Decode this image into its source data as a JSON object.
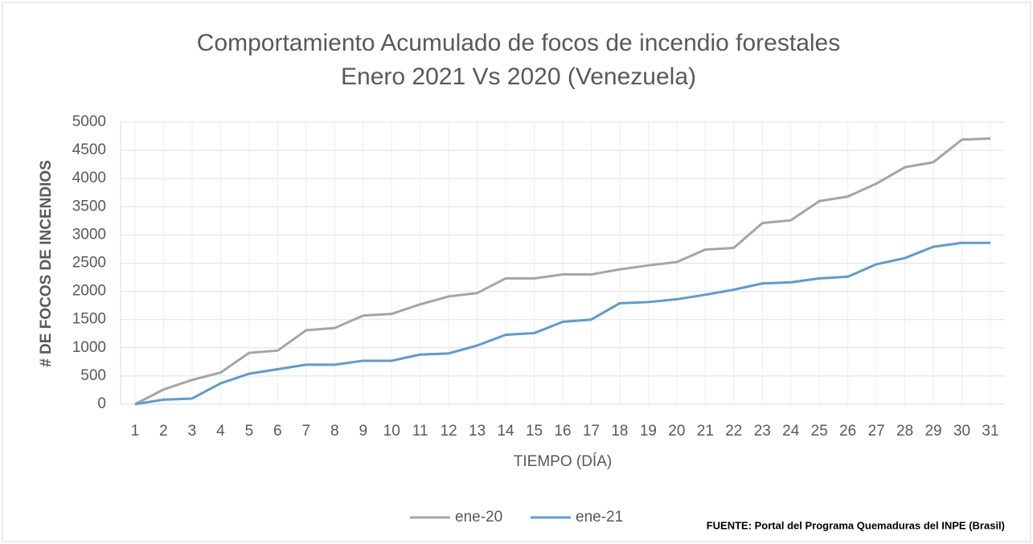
{
  "chart_data": {
    "type": "line",
    "title": [
      "Comportamiento Acumulado de focos de incendio forestales",
      "Enero 2021 Vs 2020 (Venezuela)"
    ],
    "x_label": "TIEMPO (DÍA)",
    "y_label": "# DE FOCOS DE INCENDIOS",
    "source": "FUENTE:  Portal del Programa Quemaduras del INPE (Brasil)",
    "categories": [
      1,
      2,
      3,
      4,
      5,
      6,
      7,
      8,
      9,
      10,
      11,
      12,
      13,
      14,
      15,
      16,
      17,
      18,
      19,
      20,
      21,
      22,
      23,
      24,
      25,
      26,
      27,
      28,
      29,
      30,
      31
    ],
    "series": [
      {
        "name": "ene-20",
        "color": "#a5a5a5",
        "values": [
          0,
          260,
          430,
          560,
          910,
          950,
          1310,
          1350,
          1570,
          1600,
          1770,
          1910,
          1970,
          2230,
          2230,
          2300,
          2300,
          2390,
          2460,
          2520,
          2740,
          2770,
          3210,
          3260,
          3600,
          3680,
          3910,
          4200,
          4290,
          4690,
          4710
        ]
      },
      {
        "name": "ene-21",
        "color": "#5b9bd5",
        "values": [
          0,
          80,
          100,
          370,
          540,
          620,
          700,
          700,
          770,
          770,
          880,
          900,
          1040,
          1230,
          1260,
          1460,
          1500,
          1790,
          1810,
          1860,
          1940,
          2030,
          2140,
          2160,
          2230,
          2260,
          2480,
          2590,
          2790,
          2860,
          2860
        ]
      }
    ],
    "ylim": [
      0,
      5000
    ],
    "yticks": [
      0,
      500,
      1000,
      1500,
      2000,
      2500,
      3000,
      3500,
      4000,
      4500,
      5000
    ],
    "grid": true,
    "legend": "bottom"
  }
}
